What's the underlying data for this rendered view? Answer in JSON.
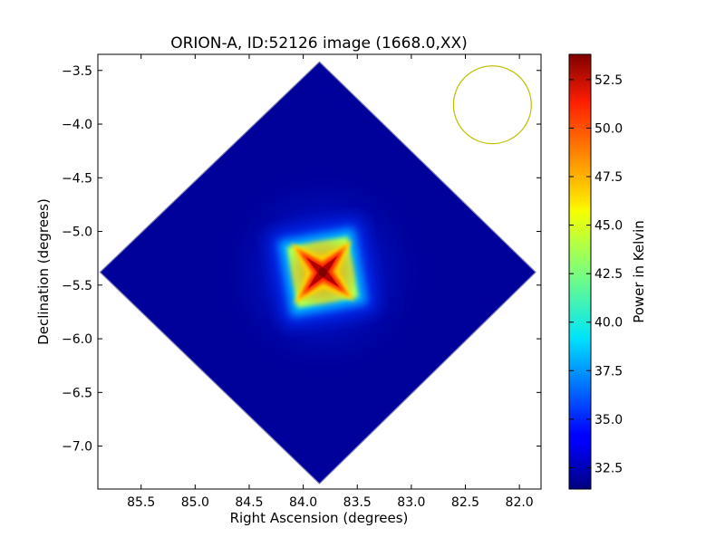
{
  "chart_data": {
    "type": "heatmap",
    "title": "ORION-A, ID:52126 image (1668.0,XX)",
    "xlabel": "Right Ascension (degrees)",
    "ylabel": "Declination (degrees)",
    "xlim": [
      85.9,
      81.8
    ],
    "ylim": [
      -7.4,
      -3.35
    ],
    "x_ticks": [
      85.5,
      85.0,
      84.5,
      84.0,
      83.5,
      83.0,
      82.5,
      82.0
    ],
    "x_tick_labels": [
      "85.5",
      "85.0",
      "84.5",
      "84.0",
      "83.5",
      "83.0",
      "82.5",
      "82.0"
    ],
    "y_ticks": [
      -3.5,
      -4.0,
      -4.5,
      -5.0,
      -5.5,
      -6.0,
      -6.5,
      -7.0
    ],
    "y_tick_labels": [
      "−3.5",
      "−4.0",
      "−4.5",
      "−5.0",
      "−5.5",
      "−6.0",
      "−6.5",
      "−7.0"
    ],
    "colormap": "jet",
    "colorbar": {
      "label": "Power in Kelvin",
      "range": [
        31.4,
        53.8
      ],
      "ticks": [
        32.5,
        35.0,
        37.5,
        40.0,
        42.5,
        45.0,
        47.5,
        50.0,
        52.5
      ],
      "tick_labels": [
        "32.5",
        "35.0",
        "37.5",
        "40.0",
        "42.5",
        "45.0",
        "47.5",
        "50.0",
        "52.5"
      ]
    },
    "map_region": {
      "shape": "rotated square",
      "vertices": [
        [
          83.85,
          -3.42
        ],
        [
          85.88,
          -5.38
        ],
        [
          83.85,
          -7.35
        ],
        [
          81.85,
          -5.38
        ]
      ],
      "background_level": 32.0
    },
    "peak": {
      "ra": 83.82,
      "dec": -5.38,
      "value": 53.8
    },
    "beam": {
      "ra": 82.25,
      "dec": -3.82,
      "radius_ra_deg": 0.36,
      "color": "#bfbf00"
    }
  }
}
